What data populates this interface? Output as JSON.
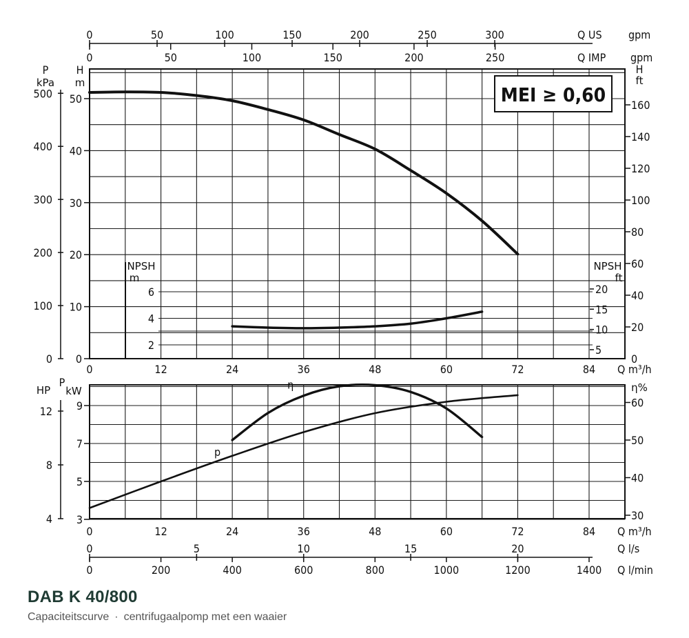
{
  "caption": {
    "title": "DAB K 40/800",
    "subtitle_left": "Capaciteitscurve",
    "subtitle_sep": "·",
    "subtitle_right": "centrifugaalpomp met een waaier"
  },
  "badge": {
    "text": "MEI ≥ 0,60"
  },
  "chart_data": [
    {
      "type": "line",
      "panel": "head",
      "x_unit": "Q m³/h",
      "xlim": [
        0,
        84
      ],
      "x_ticks": [
        0,
        12,
        24,
        36,
        48,
        60,
        72,
        84
      ],
      "ylim": [
        0,
        55
      ],
      "left_axis_P": {
        "label": "P",
        "unit": "kPa",
        "ticks": [
          0,
          100,
          200,
          300,
          400,
          500
        ]
      },
      "left_axis_H": {
        "label": "H",
        "unit": "m",
        "ticks": [
          0,
          10,
          20,
          30,
          40,
          50
        ]
      },
      "right_axis_H": {
        "label": "H",
        "unit": "ft",
        "ticks": [
          0,
          20,
          40,
          60,
          80,
          100,
          120,
          140,
          160
        ]
      },
      "top_axis_US": {
        "label": "Q US",
        "unit": "gpm",
        "ticks": [
          0,
          50,
          100,
          150,
          200,
          250,
          300
        ]
      },
      "top_axis_IMP": {
        "label": "Q IMP",
        "unit": "gpm",
        "ticks": [
          0,
          50,
          100,
          150,
          200,
          250
        ]
      },
      "series": [
        {
          "x": [
            0,
            6,
            12,
            18,
            24,
            30,
            36,
            42,
            48,
            54,
            60,
            66,
            72
          ],
          "values": [
            51.2,
            51.3,
            51.2,
            50.6,
            49.6,
            47.9,
            45.9,
            43.1,
            40.3,
            36.2,
            31.8,
            26.5,
            20.1
          ]
        }
      ]
    },
    {
      "type": "line",
      "panel": "npsh",
      "x_unit": "Q m³/h",
      "npsh_m": {
        "label": "NPSH",
        "unit": "m",
        "ticks": [
          2,
          4,
          6
        ]
      },
      "npsh_ft": {
        "label": "NPSH",
        "unit": "ft",
        "ticks": [
          5,
          10,
          15,
          20
        ]
      },
      "series": [
        {
          "x": [
            24,
            30,
            36,
            42,
            48,
            54,
            60,
            66
          ],
          "values": [
            3.4,
            3.3,
            3.25,
            3.3,
            3.4,
            3.6,
            4.0,
            4.5
          ]
        }
      ]
    },
    {
      "type": "line",
      "panel": "power_efficiency",
      "x_unit": "Q m³/h",
      "xlim": [
        0,
        84
      ],
      "x_ticks": [
        0,
        12,
        24,
        36,
        48,
        60,
        72,
        84
      ],
      "power_kW": {
        "label": "P",
        "unit": "kW",
        "ticks": [
          3,
          5,
          7,
          9
        ],
        "ylim": [
          3,
          10.4
        ]
      },
      "power_HP": {
        "label": "HP",
        "ticks": [
          4,
          8,
          12
        ]
      },
      "efficiency": {
        "label": "η%",
        "ticks": [
          30,
          40,
          50,
          60
        ],
        "ylim": [
          30,
          66
        ]
      },
      "secondary_x_ls": {
        "label": "Q",
        "unit": "l/s",
        "ticks": [
          0,
          5,
          10,
          15,
          20
        ]
      },
      "secondary_x_lmin": {
        "label": "Q",
        "unit": "l/min",
        "ticks": [
          0,
          200,
          400,
          600,
          800,
          1000,
          1200,
          1400
        ]
      },
      "series": [
        {
          "name": "P",
          "x": [
            0,
            12,
            24,
            36,
            48,
            60,
            72
          ],
          "values": [
            3.6,
            5.0,
            6.35,
            7.6,
            8.6,
            9.2,
            9.55
          ]
        },
        {
          "name": "η",
          "x": [
            24,
            30,
            36,
            42,
            48,
            54,
            60,
            66
          ],
          "values": [
            50.0,
            57.2,
            61.8,
            64.3,
            64.6,
            62.8,
            58.4,
            50.8
          ]
        }
      ]
    }
  ]
}
